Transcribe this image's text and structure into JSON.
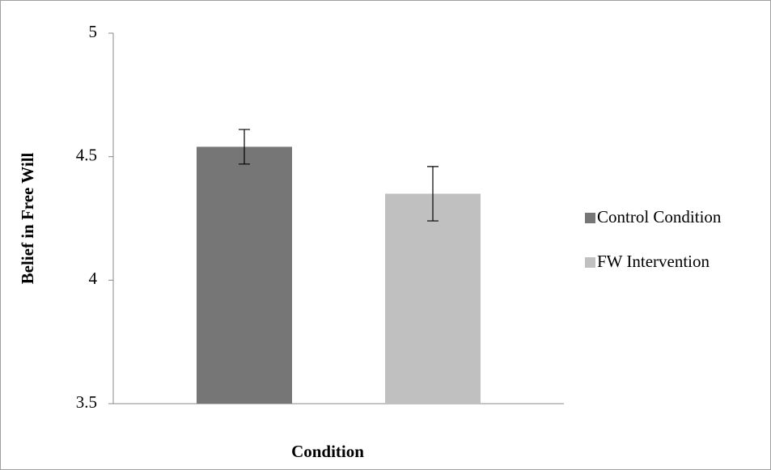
{
  "chart_data": {
    "type": "bar",
    "y_label": "Belief in Free Will",
    "x_label": "Condition",
    "series": [
      {
        "name": "Control Condition",
        "color": "#767676",
        "values": [
          4.54
        ],
        "errors": [
          0.07
        ]
      },
      {
        "name": "FW Intervention",
        "color": "#c0c0c0",
        "values": [
          4.35
        ],
        "errors": [
          0.11
        ]
      }
    ],
    "ylim": [
      3.5,
      5
    ],
    "yticks": [
      3.5,
      4,
      4.5,
      5
    ],
    "grid": false,
    "legend": "right"
  }
}
